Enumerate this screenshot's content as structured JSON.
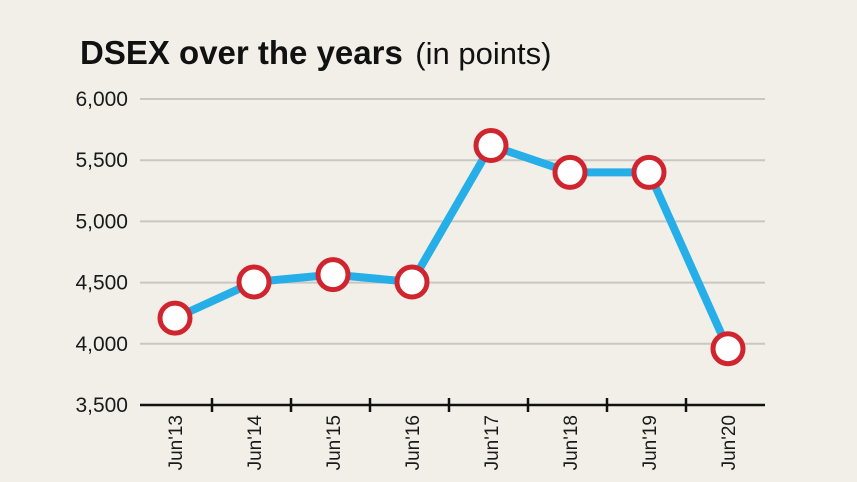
{
  "chart_data": {
    "type": "line",
    "title": "DSEX over the years",
    "subtitle": "(in points)",
    "categories": [
      "Jun'13",
      "Jun'14",
      "Jun'15",
      "Jun'16",
      "Jun'17",
      "Jun'18",
      "Jun'19",
      "Jun'20"
    ],
    "series": [
      {
        "values": [
          4210,
          4505,
          4565,
          4505,
          5620,
          5400,
          5400,
          3960
        ]
      }
    ],
    "ylim": [
      3500,
      6000
    ],
    "yticks": [
      6000,
      5500,
      5000,
      4500,
      4000,
      3500
    ],
    "ytick_labels": [
      "6,000",
      "5,500",
      "5,000",
      "4,500",
      "4,000",
      "3,500"
    ],
    "grid": true,
    "line_color": "#25aee8",
    "marker_stroke_color": "#d0242e",
    "marker_fill_color": "#ffffff",
    "background_color": "#f1efe8"
  }
}
